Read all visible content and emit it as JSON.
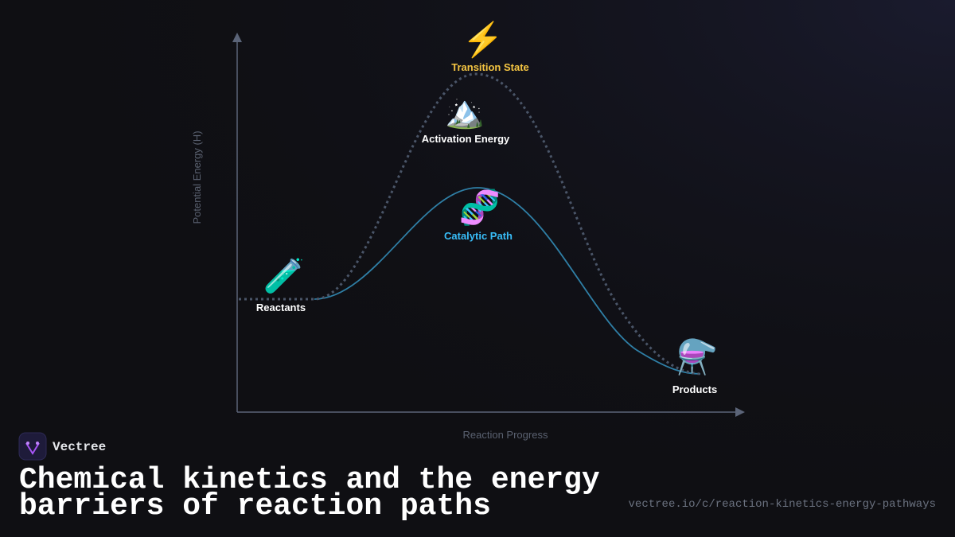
{
  "diagram": {
    "y_axis_label": "Potential Energy (H)",
    "x_axis_label": "Reaction Progress",
    "nodes": [
      {
        "icon": "⚡",
        "label": "Transition State"
      },
      {
        "icon": "🏔️",
        "label": "Activation Energy"
      },
      {
        "icon": "🧬",
        "label": "Catalytic Path"
      },
      {
        "icon": "🧪",
        "label": "Reactants"
      },
      {
        "icon": "⚗️",
        "label": "Products"
      }
    ]
  },
  "footer": {
    "brand": "Vectree",
    "title_lines": [
      "Chemical kinetics and the energy",
      "barriers of reaction paths"
    ],
    "url": "vectree.io/c/reaction-kinetics-energy-pathways"
  }
}
